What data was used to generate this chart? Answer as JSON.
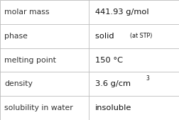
{
  "rows": [
    {
      "label": "molar mass",
      "value": "441.93 g/mol",
      "type": "plain"
    },
    {
      "label": "phase",
      "value": "solid",
      "value_suffix": "(at STP)",
      "type": "suffix"
    },
    {
      "label": "melting point",
      "value": "150 °C",
      "type": "plain"
    },
    {
      "label": "density",
      "value": "3.6 g/cm",
      "superscript": "3",
      "type": "super"
    },
    {
      "label": "solubility in water",
      "value": "insoluble",
      "type": "plain"
    }
  ],
  "col_split": 0.495,
  "bg_color": "#ffffff",
  "border_color": "#bbbbbb",
  "label_fontsize": 7.8,
  "value_fontsize": 8.2,
  "small_fontsize": 5.8,
  "label_color": "#333333",
  "value_color": "#111111"
}
